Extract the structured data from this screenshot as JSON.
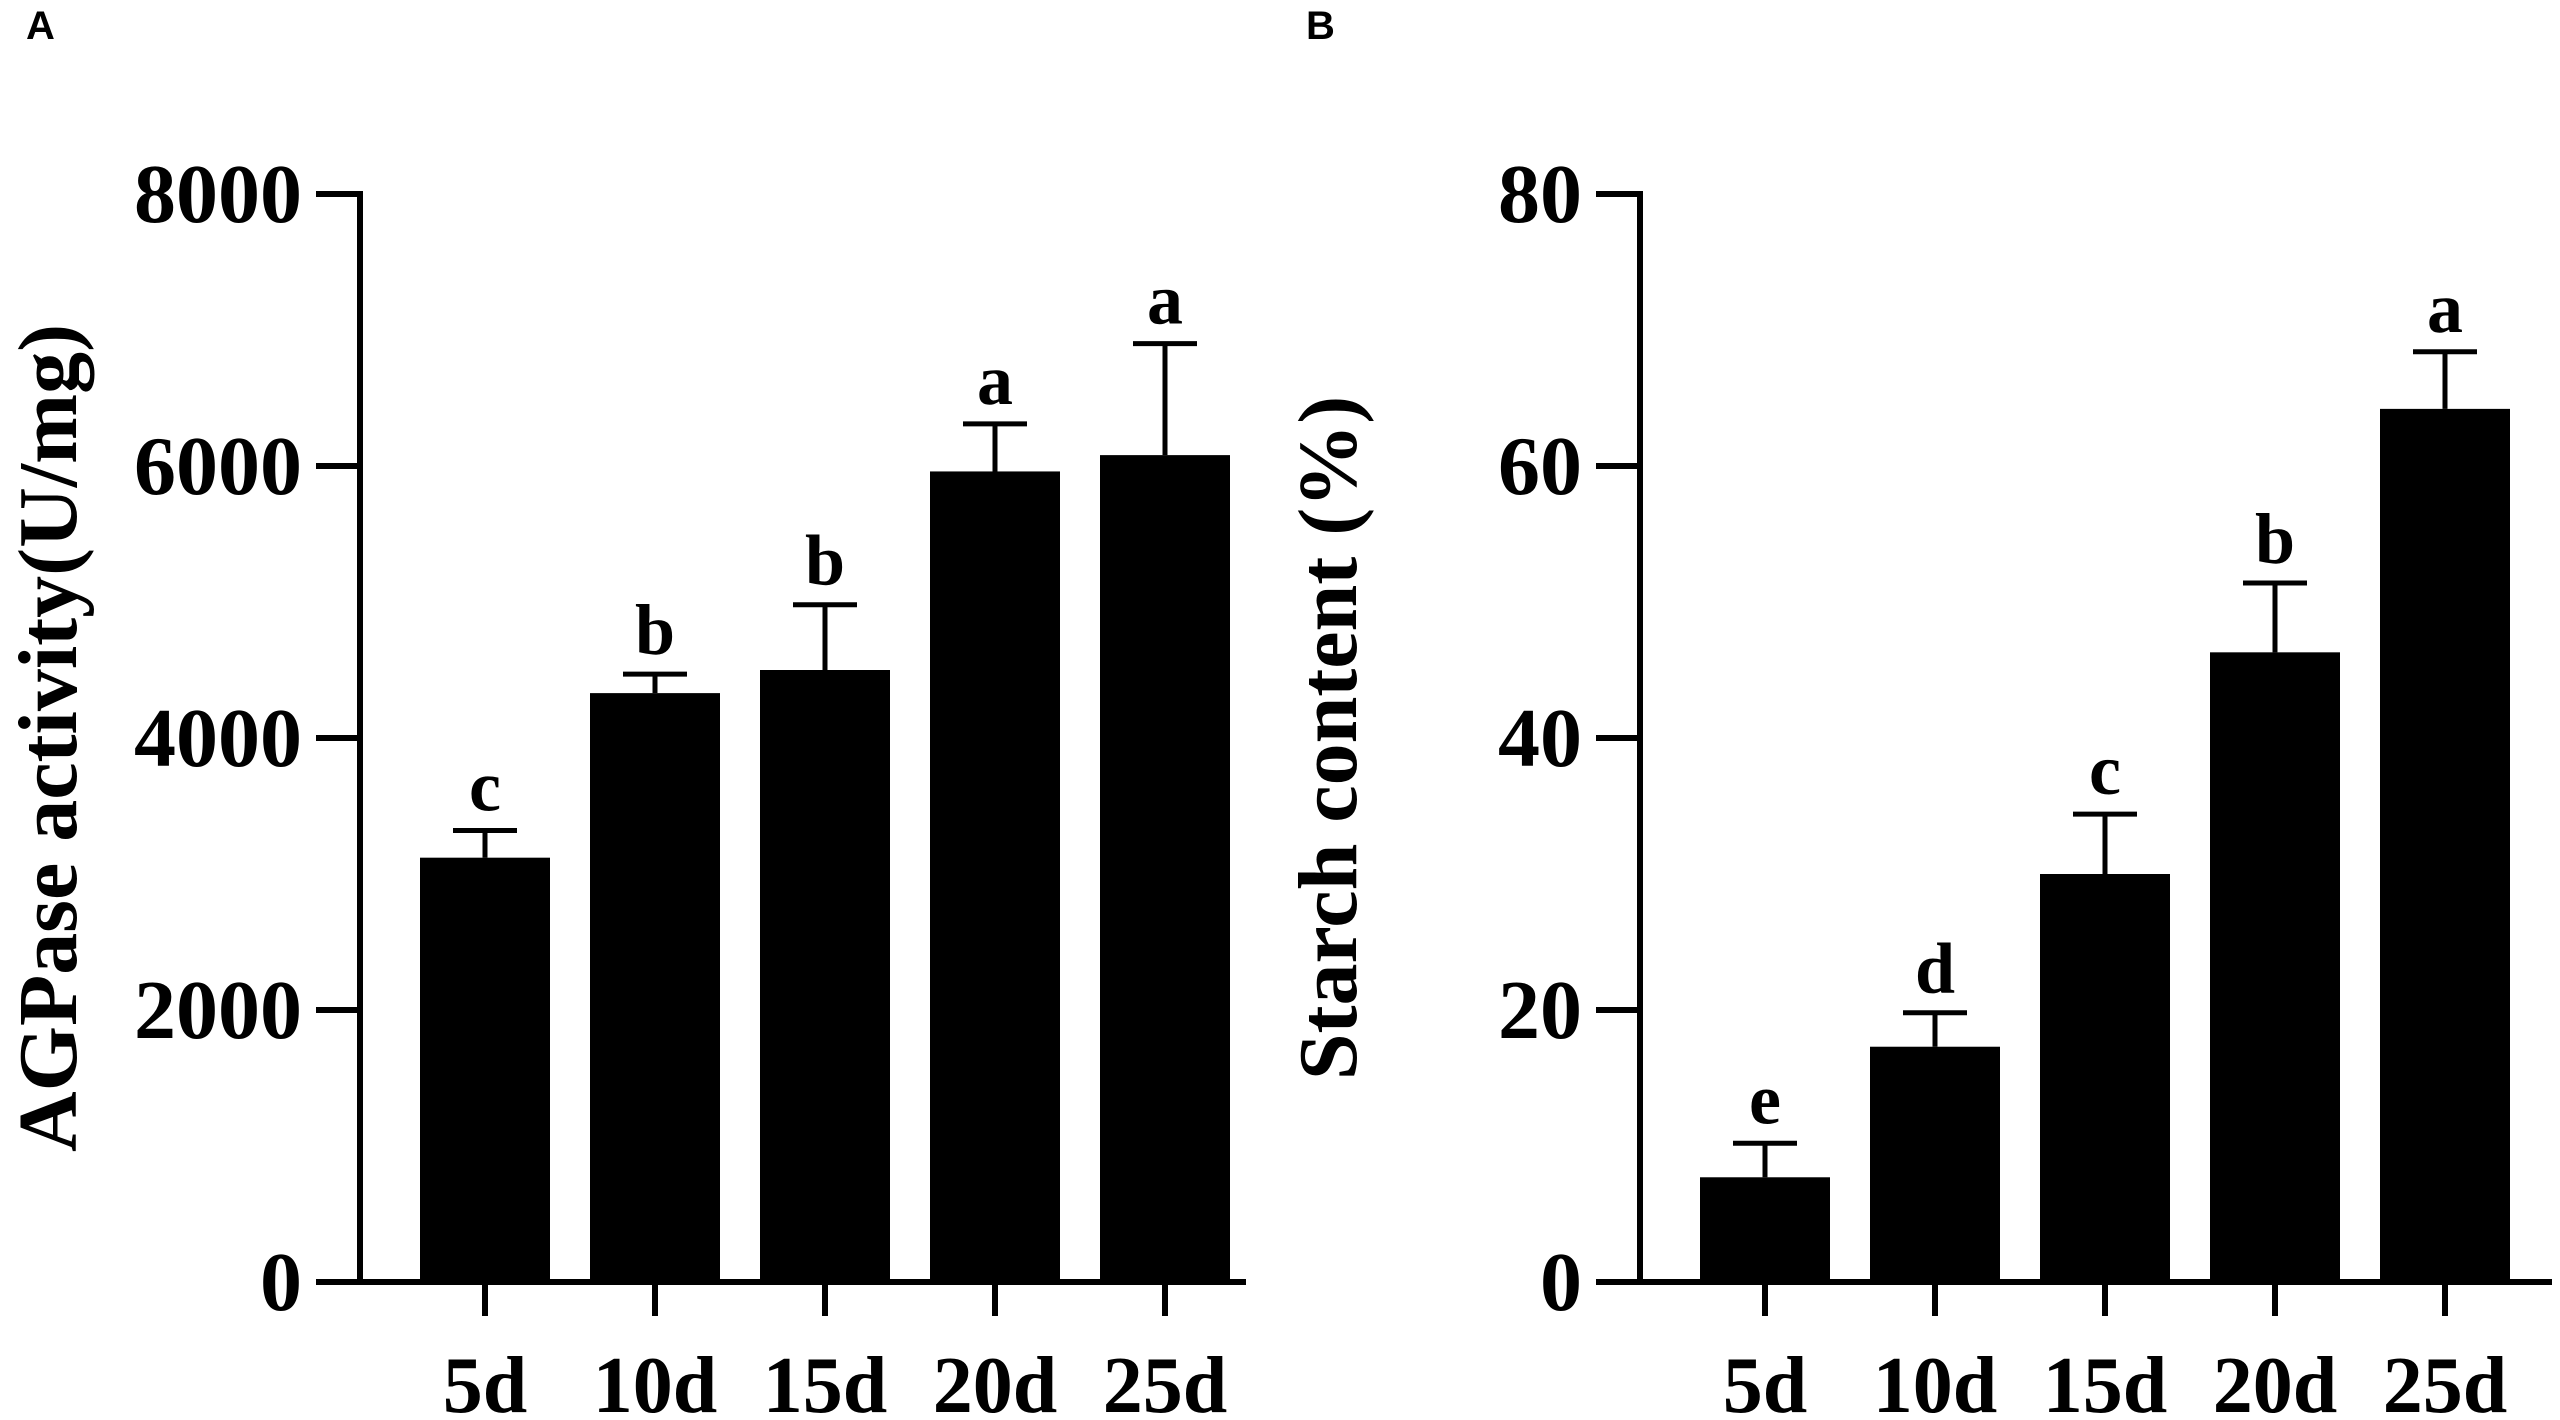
{
  "panels": [
    {
      "letter": "A",
      "chart_data": {
        "type": "bar",
        "title": "",
        "xlabel": "",
        "ylabel": "AGPase activity(U/mg)",
        "categories": [
          "5d",
          "10d",
          "15d",
          "20d",
          "25d"
        ],
        "values": [
          3120,
          4330,
          4500,
          5960,
          6080
        ],
        "error": [
          200,
          140,
          480,
          350,
          820
        ],
        "significance": [
          "c",
          "b",
          "b",
          "a",
          "a"
        ],
        "ylim": [
          0,
          8000
        ],
        "yticks": [
          "0",
          "2000",
          "4000",
          "6000",
          "8000"
        ],
        "bar_color": "#000000",
        "grid": false,
        "legend": "none"
      }
    },
    {
      "letter": "B",
      "chart_data": {
        "type": "bar",
        "title": "",
        "xlabel": "",
        "ylabel": "Starch content (%)",
        "categories": [
          "5d",
          "10d",
          "15d",
          "20d",
          "25d"
        ],
        "values": [
          7.7,
          17.3,
          30.0,
          46.3,
          64.2
        ],
        "error": [
          2.5,
          2.5,
          4.4,
          5.1,
          4.2
        ],
        "significance": [
          "e",
          "d",
          "c",
          "b",
          "a"
        ],
        "ylim": [
          0,
          80
        ],
        "yticks": [
          "0",
          "20",
          "40",
          "60",
          "80"
        ],
        "bar_color": "#000000",
        "grid": false,
        "legend": "none"
      }
    }
  ]
}
